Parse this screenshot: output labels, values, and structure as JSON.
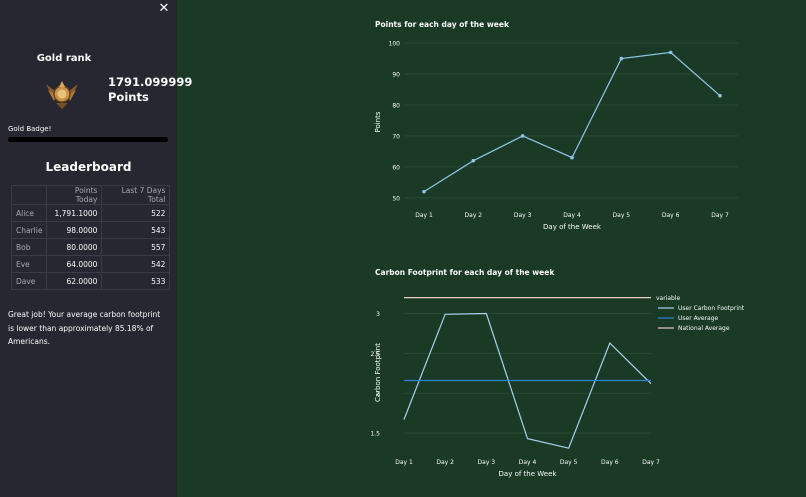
{
  "sidebar": {
    "close_icon": "close-icon",
    "rank_title": "Gold rank",
    "badge_icon": "gold-badge-icon",
    "points_value": "1791.099999",
    "points_label": "Points",
    "badge_label": "Gold Badge!",
    "progress_fraction": 1.0,
    "leaderboard_title": "Leaderboard",
    "leaderboard": {
      "columns": [
        "",
        "Points Today",
        "Last 7 Days Total"
      ],
      "rows": [
        {
          "name": "Alice",
          "today": "1,791.1000",
          "total": "522"
        },
        {
          "name": "Charlie",
          "today": "98.0000",
          "total": "543"
        },
        {
          "name": "Bob",
          "today": "80.0000",
          "total": "557"
        },
        {
          "name": "Eve",
          "today": "64.0000",
          "total": "542"
        },
        {
          "name": "Dave",
          "today": "62.0000",
          "total": "533"
        }
      ]
    },
    "summary": "Great job! Your average carbon footprint is lower than approximately 85.18% of Americans."
  },
  "chart_data": [
    {
      "type": "line",
      "title": "Points for each day of the week",
      "xlabel": "Day of the Week",
      "ylabel": "Points",
      "categories": [
        "Day 1",
        "Day 2",
        "Day 3",
        "Day 4",
        "Day 5",
        "Day 6",
        "Day 7"
      ],
      "yticks": [
        50,
        60,
        70,
        80,
        90,
        100
      ],
      "ylim": [
        48,
        101
      ],
      "grid": true,
      "markers": true,
      "series": [
        {
          "values": [
            52,
            62,
            70,
            63,
            95,
            97,
            83
          ],
          "color": "#8ec5e8"
        }
      ]
    },
    {
      "type": "line",
      "title": "Carbon Footprint for each day of the week",
      "xlabel": "Day of the Week",
      "ylabel": "Carbon Footprint",
      "categories": [
        "Day 1",
        "Day 2",
        "Day 3",
        "Day 4",
        "Day 5",
        "Day 6",
        "Day 7"
      ],
      "yticks": [
        1.5,
        2,
        2.5,
        3
      ],
      "ylim": [
        1.3,
        3.22
      ],
      "grid": true,
      "legend_title": "variable",
      "legend_position": "right",
      "series": [
        {
          "name": "User Carbon Footprint",
          "values": [
            1.67,
            2.99,
            3.0,
            1.43,
            1.31,
            2.63,
            2.12
          ],
          "color": "#a6d1f0"
        },
        {
          "name": "User Average",
          "values": [
            2.16,
            2.16,
            2.16,
            2.16,
            2.16,
            2.16,
            2.16
          ],
          "color": "#2e7fd6"
        },
        {
          "name": "National Average",
          "values": [
            3.2,
            3.2,
            3.2,
            3.2,
            3.2,
            3.2,
            3.2
          ],
          "color": "#f4c9c4"
        }
      ]
    }
  ]
}
